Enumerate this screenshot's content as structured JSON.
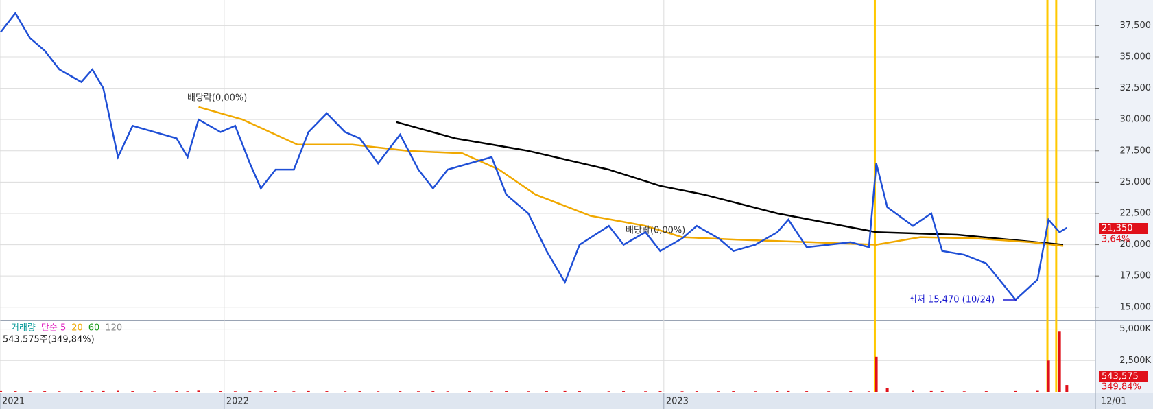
{
  "chart_data": {
    "type": "line",
    "x": [
      5.9,
      6.3,
      6.7,
      7.1,
      7.5,
      8.1,
      8.4,
      8.7,
      9.1,
      9.5,
      10.1,
      10.7,
      11.0,
      11.3,
      11.9,
      12.3,
      12.7,
      13.0,
      13.4,
      13.9,
      14.3,
      14.8,
      15.3,
      15.7,
      16.2,
      16.8,
      17.3,
      17.7,
      18.1,
      18.7,
      19.3,
      19.7,
      20.3,
      20.8,
      21.3,
      21.7,
      22.5,
      22.9,
      23.5,
      23.9,
      24.5,
      24.9,
      25.5,
      25.9,
      26.5,
      27.1,
      27.4,
      27.9,
      28.5,
      29.1,
      29.6,
      29.8,
      30.1,
      30.8,
      31.3,
      31.6,
      32.2,
      32.8,
      33.6,
      34.2,
      34.5,
      34.8,
      35.0
    ],
    "series": [
      {
        "color": "#1f4fd6",
        "values": [
          37000,
          38500,
          36500,
          35500,
          34000,
          33000,
          34000,
          32500,
          27000,
          29500,
          29000,
          28500,
          27000,
          30000,
          29000,
          29500,
          26500,
          24500,
          26000,
          26000,
          29000,
          30500,
          29000,
          28500,
          26500,
          28800,
          26000,
          24500,
          26000,
          26500,
          27000,
          24000,
          22500,
          19500,
          17000,
          20000,
          21500,
          20000,
          21000,
          19500,
          20500,
          21500,
          20500,
          19500,
          20000,
          21000,
          22000,
          19800,
          20000,
          20200,
          19800,
          26500,
          23000,
          21500,
          22500,
          19500,
          19200,
          18500,
          15600,
          17200,
          22000,
          21000,
          21350
        ]
      }
    ],
    "moving_averages": [
      {
        "color": "#000000",
        "x": [
          16.7,
          18.3,
          20.3,
          22.5,
          23.9,
          25.1,
          27.1,
          29.8,
          32.0,
          34.9
        ],
        "values": [
          29800,
          28500,
          27500,
          26000,
          24700,
          24000,
          22500,
          21000,
          20800,
          20000
        ]
      },
      {
        "color": "#f0a800",
        "x": [
          11.3,
          12.5,
          14.0,
          15.5,
          17.0,
          18.5,
          19.5,
          20.5,
          22.0,
          23.5,
          24.5,
          26.0,
          28.0,
          29.8,
          31.0,
          32.5,
          34.0,
          34.9
        ],
        "values": [
          31000,
          30000,
          28000,
          28000,
          27500,
          27300,
          26000,
          24000,
          22300,
          21500,
          20600,
          20400,
          20200,
          20000,
          20600,
          20500,
          20200,
          19900
        ]
      }
    ],
    "xlim": [
      5.88,
      35.78
    ],
    "xticks": [
      {
        "value": 5.88,
        "label": "2021"
      },
      {
        "value": 12,
        "label": "2022"
      },
      {
        "value": 24,
        "label": "2023"
      }
    ],
    "ylim": [
      14000,
      39550
    ],
    "yticks": [
      {
        "value": 15000,
        "label": "15,000"
      },
      {
        "value": 17500,
        "label": "17,500"
      },
      {
        "value": 20000,
        "label": "20,000"
      },
      {
        "value": 22500,
        "label": "22,500"
      },
      {
        "value": 25000,
        "label": "25,000"
      },
      {
        "value": 27500,
        "label": "27,500"
      },
      {
        "value": 30000,
        "label": "30,000"
      },
      {
        "value": 32500,
        "label": "32,500"
      },
      {
        "value": 35000,
        "label": "35,000"
      },
      {
        "value": 37500,
        "label": "37,500"
      }
    ],
    "grid": true,
    "event_lines_x": [
      29.76,
      34.47,
      34.71
    ],
    "event_color": "#ffc800",
    "annotations": [
      "배당락(0,00%)",
      "배당락(0,00%)",
      "최저 15,470 (10/24)"
    ],
    "last_price_label": "21,350",
    "last_change_label": "3,64%",
    "cursor_date": "12/01",
    "volume": {
      "color": "#e0101a",
      "values": [
        60000,
        50000,
        40000,
        50000,
        40000,
        50000,
        40000,
        60000,
        80000,
        50000,
        40000,
        50000,
        40000,
        90000,
        50000,
        40000,
        50000,
        40000,
        50000,
        40000,
        60000,
        50000,
        40000,
        50000,
        40000,
        50000,
        40000,
        50000,
        40000,
        50000,
        40000,
        50000,
        40000,
        50000,
        60000,
        50000,
        40000,
        50000,
        40000,
        50000,
        40000,
        50000,
        40000,
        50000,
        40000,
        50000,
        60000,
        50000,
        40000,
        50000,
        40000,
        2800000,
        300000,
        80000,
        60000,
        50000,
        40000,
        50000,
        60000,
        80000,
        2500000,
        4800000,
        543575
      ],
      "ylim": [
        0,
        5580000
      ],
      "yticks": [
        {
          "value": 2500000,
          "label": "2,500K"
        },
        {
          "value": 5000000,
          "label": "5,000K"
        }
      ],
      "legend": [
        "거래량",
        "단순 5",
        "20",
        "60",
        "120"
      ],
      "legend_colors": [
        "#0a9a9a",
        "#e020c0",
        "#f0a800",
        "#1a9a1a",
        "#888888"
      ],
      "summary": "543,575주(349,84%)",
      "last_label": "543,575",
      "last_change_label": "349,84%"
    }
  }
}
